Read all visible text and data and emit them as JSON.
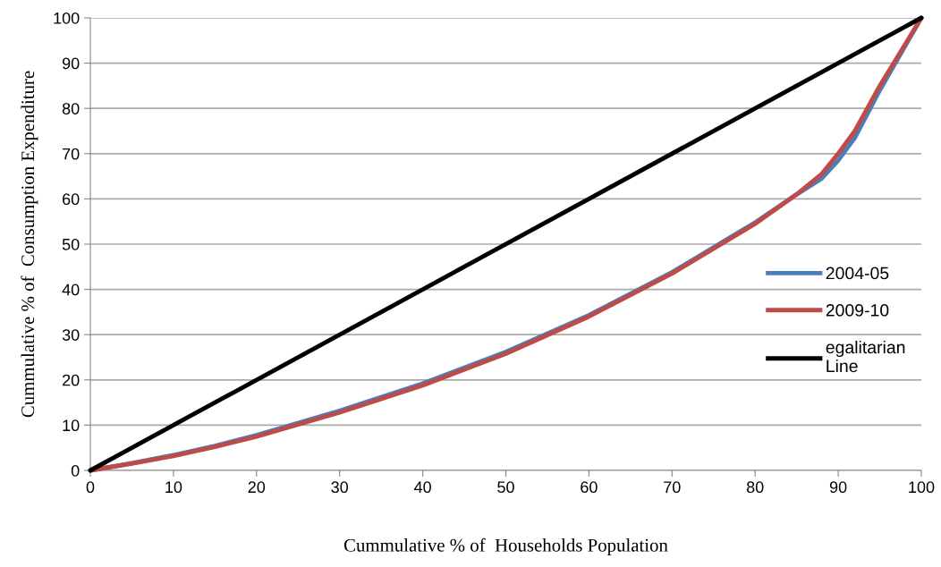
{
  "chart_data": {
    "type": "line",
    "xlabel": "Cummulative % of  Households Population",
    "ylabel": "Cummulative % of  Consumption Expenditure",
    "xlim": [
      0,
      100
    ],
    "ylim": [
      0,
      100
    ],
    "xticks": [
      0,
      10,
      20,
      30,
      40,
      50,
      60,
      70,
      80,
      90,
      100
    ],
    "yticks": [
      0,
      10,
      20,
      30,
      40,
      50,
      60,
      70,
      80,
      90,
      100
    ],
    "grid": "y",
    "legend": "right",
    "marker": "none",
    "line_style": "solid",
    "series": [
      {
        "name": "2004-05",
        "color": "#4a7ebb",
        "x": [
          0,
          5,
          10,
          15,
          20,
          30,
          40,
          50,
          60,
          70,
          80,
          85,
          88,
          90,
          92,
          95,
          100
        ],
        "values": [
          0,
          1.6,
          3.4,
          5.4,
          7.8,
          13.2,
          19.2,
          26.2,
          34.3,
          43.8,
          54.8,
          61,
          64.5,
          68.5,
          73.5,
          84,
          100
        ]
      },
      {
        "name": "2009-10",
        "color": "#be4b48",
        "x": [
          0,
          5,
          10,
          15,
          20,
          30,
          40,
          50,
          60,
          70,
          80,
          85,
          88,
          90,
          92,
          95,
          100
        ],
        "values": [
          0,
          1.5,
          3.2,
          5.2,
          7.5,
          12.8,
          18.8,
          25.8,
          34,
          43.5,
          54.5,
          61,
          65.5,
          70,
          75,
          85,
          100
        ]
      },
      {
        "name": "egalitarian\nLine",
        "color": "#000000",
        "x": [
          0,
          100
        ],
        "values": [
          0,
          100
        ]
      }
    ]
  }
}
